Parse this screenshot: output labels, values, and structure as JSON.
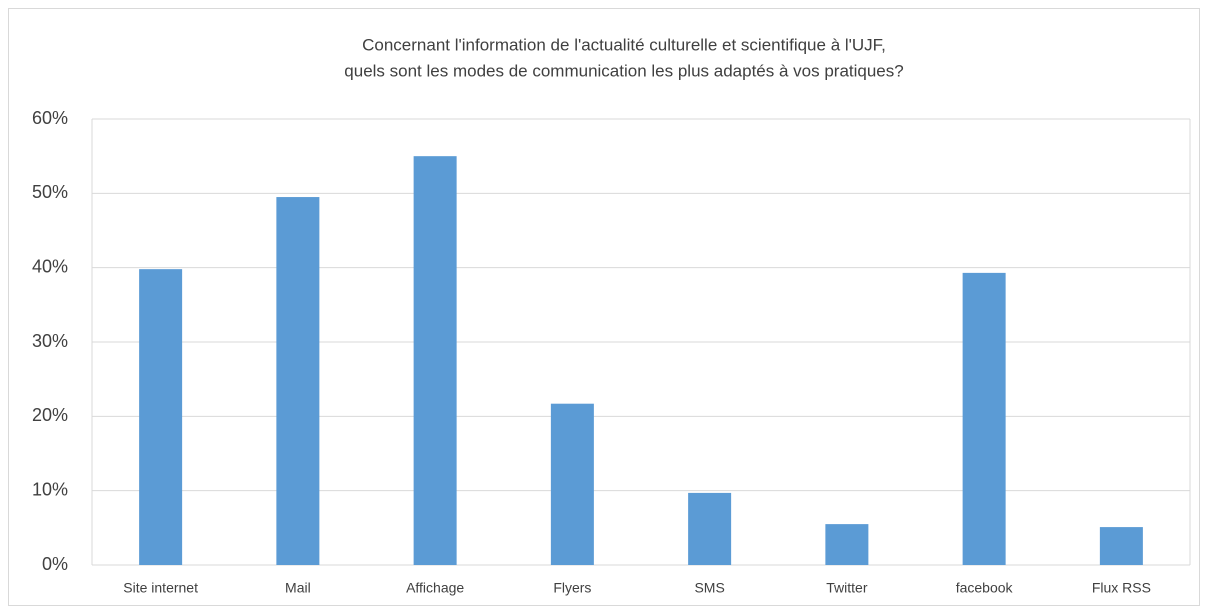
{
  "chart_data": {
    "type": "bar",
    "title": [
      "Concernant l'information de l'actualité culturelle et scientifique à l'UJF,",
      "quels sont les modes de communication les plus adaptés à vos pratiques?"
    ],
    "categories": [
      "Site internet",
      "Mail",
      "Affichage",
      "Flyers",
      "SMS",
      "Twitter",
      "facebook",
      "Flux RSS"
    ],
    "values": [
      39.8,
      49.5,
      55.0,
      21.7,
      9.7,
      5.5,
      39.3,
      5.1
    ],
    "color": "#5b9bd5",
    "ylim": [
      0,
      60
    ],
    "yticks": [
      {
        "value": 0,
        "label": "0%"
      },
      {
        "value": 10,
        "label": "10%"
      },
      {
        "value": 20,
        "label": "20%"
      },
      {
        "value": 30,
        "label": "30%"
      },
      {
        "value": 40,
        "label": "40%"
      },
      {
        "value": 50,
        "label": "50%"
      },
      {
        "value": 60,
        "label": "60%"
      }
    ],
    "grid": true
  }
}
